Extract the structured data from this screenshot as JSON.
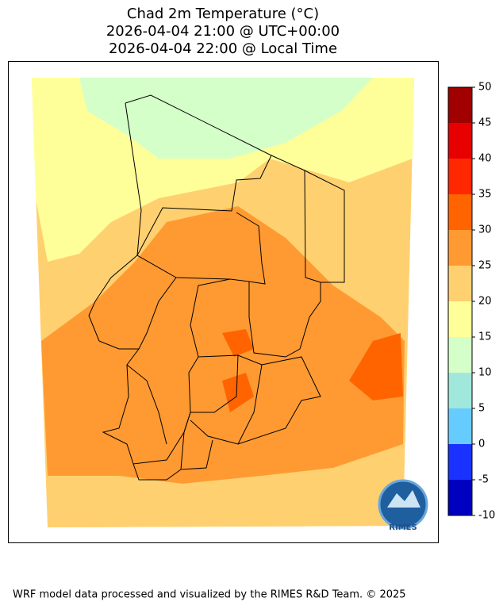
{
  "title": [
    "Chad 2m Temperature (°C)",
    "2026-04-04 21:00 @ UTC+00:00",
    "2026-04-04 22:00 @ Local Time"
  ],
  "colorbar": {
    "lim": [
      -10,
      50
    ],
    "ticks": [
      -10,
      -5,
      0,
      5,
      10,
      15,
      20,
      25,
      30,
      35,
      40,
      45,
      50
    ],
    "colors": [
      "#0000c0",
      "#1a32ff",
      "#66ccff",
      "#a0e8dc",
      "#d4ffc8",
      "#ffff99",
      "#ffd070",
      "#ff9a32",
      "#ff6400",
      "#ff2800",
      "#e60000",
      "#a00000"
    ]
  },
  "logo_text": "RIMES",
  "footer": "WRF model data processed and visualized by the RIMES R&D Team. © 2025"
}
